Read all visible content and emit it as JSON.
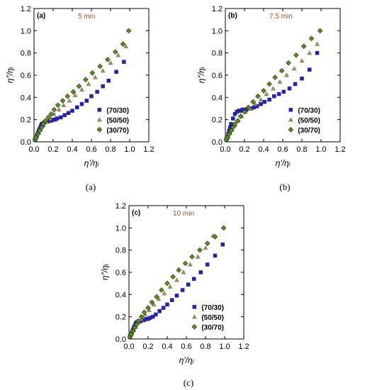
{
  "colors": {
    "s70": "#2222aa",
    "s50": "#a88a5a",
    "s30": "#5e8a2a",
    "time_label": "#a0522d"
  },
  "chart_data": [
    {
      "type": "scatter",
      "panel_label": "(a)",
      "caption": "(a)",
      "time_label": "5 min",
      "xlim": [
        0,
        1.2
      ],
      "ylim": [
        0,
        1.2
      ],
      "xticks": [
        "0.0",
        "0.2",
        "0.4",
        "0.6",
        "0.8",
        "1.0",
        "1.2"
      ],
      "yticks": [
        "0.0",
        "0.2",
        "0.4",
        "0.6",
        "0.8",
        "1.0",
        "1.2"
      ],
      "xlabel": "η′/ηᵢ",
      "ylabel": "η″/ηᵢ",
      "legend_position": "bottom-right",
      "series": [
        {
          "name": "(70/30)",
          "marker": "square",
          "x": [
            0.01,
            0.02,
            0.03,
            0.04,
            0.05,
            0.06,
            0.07,
            0.08,
            0.1,
            0.12,
            0.14,
            0.16,
            0.18,
            0.2,
            0.22,
            0.24,
            0.28,
            0.32,
            0.36,
            0.4,
            0.45,
            0.5,
            0.55,
            0.6,
            0.66,
            0.72,
            0.78,
            0.86,
            0.94
          ],
          "y": [
            0.02,
            0.04,
            0.06,
            0.08,
            0.1,
            0.12,
            0.14,
            0.16,
            0.17,
            0.18,
            0.18,
            0.19,
            0.19,
            0.2,
            0.2,
            0.21,
            0.22,
            0.24,
            0.26,
            0.28,
            0.31,
            0.34,
            0.37,
            0.41,
            0.45,
            0.5,
            0.55,
            0.63,
            0.72
          ]
        },
        {
          "name": "(50/50)",
          "marker": "triangle",
          "x": [
            0.01,
            0.03,
            0.05,
            0.07,
            0.1,
            0.13,
            0.17,
            0.21,
            0.26,
            0.31,
            0.37,
            0.43,
            0.5,
            0.57,
            0.64,
            0.72,
            0.8,
            0.88,
            0.96
          ],
          "y": [
            0.02,
            0.05,
            0.08,
            0.11,
            0.15,
            0.18,
            0.21,
            0.25,
            0.29,
            0.33,
            0.37,
            0.42,
            0.47,
            0.52,
            0.58,
            0.64,
            0.71,
            0.78,
            0.86
          ]
        },
        {
          "name": "(30/70)",
          "marker": "diamond",
          "x": [
            0.01,
            0.02,
            0.04,
            0.06,
            0.08,
            0.1,
            0.12,
            0.15,
            0.18,
            0.21,
            0.25,
            0.3,
            0.35,
            0.41,
            0.47,
            0.54,
            0.61,
            0.69,
            0.77,
            0.85,
            0.93,
            0.99
          ],
          "y": [
            0.02,
            0.04,
            0.07,
            0.1,
            0.13,
            0.16,
            0.19,
            0.22,
            0.25,
            0.29,
            0.33,
            0.37,
            0.41,
            0.45,
            0.5,
            0.56,
            0.62,
            0.68,
            0.74,
            0.81,
            0.88,
            1.0
          ]
        }
      ]
    },
    {
      "type": "scatter",
      "panel_label": "(b)",
      "caption": "(b)",
      "time_label": "7.5 min",
      "xlim": [
        0,
        1.2
      ],
      "ylim": [
        0,
        1.2
      ],
      "xticks": [
        "0.0",
        "0.2",
        "0.4",
        "0.6",
        "0.8",
        "1.0",
        "1.2"
      ],
      "yticks": [
        "0.0",
        "0.2",
        "0.4",
        "0.6",
        "0.8",
        "1.0",
        "1.2"
      ],
      "xlabel": "η′/ηᵢ",
      "ylabel": "η″/ηᵢ",
      "legend_position": "bottom-right",
      "series": [
        {
          "name": "(70/30)",
          "marker": "square",
          "x": [
            0.01,
            0.02,
            0.03,
            0.04,
            0.05,
            0.06,
            0.08,
            0.1,
            0.12,
            0.14,
            0.16,
            0.18,
            0.2,
            0.22,
            0.24,
            0.27,
            0.3,
            0.33,
            0.37,
            0.41,
            0.46,
            0.51,
            0.56,
            0.61,
            0.67,
            0.73,
            0.8,
            0.88,
            0.96
          ],
          "y": [
            0.02,
            0.04,
            0.07,
            0.1,
            0.13,
            0.16,
            0.21,
            0.25,
            0.27,
            0.28,
            0.28,
            0.29,
            0.29,
            0.29,
            0.3,
            0.3,
            0.31,
            0.32,
            0.34,
            0.36,
            0.38,
            0.41,
            0.43,
            0.45,
            0.48,
            0.52,
            0.57,
            0.65,
            0.8
          ]
        },
        {
          "name": "(50/50)",
          "marker": "triangle",
          "x": [
            0.01,
            0.03,
            0.05,
            0.07,
            0.1,
            0.13,
            0.17,
            0.21,
            0.26,
            0.31,
            0.37,
            0.43,
            0.5,
            0.57,
            0.64,
            0.72,
            0.8,
            0.88,
            0.96
          ],
          "y": [
            0.02,
            0.05,
            0.08,
            0.11,
            0.15,
            0.19,
            0.23,
            0.27,
            0.3,
            0.34,
            0.38,
            0.43,
            0.48,
            0.54,
            0.6,
            0.66,
            0.73,
            0.8,
            0.88
          ]
        },
        {
          "name": "(30/70)",
          "marker": "diamond",
          "x": [
            0.01,
            0.02,
            0.04,
            0.06,
            0.08,
            0.1,
            0.13,
            0.16,
            0.2,
            0.24,
            0.29,
            0.34,
            0.4,
            0.46,
            0.52,
            0.59,
            0.66,
            0.74,
            0.82,
            0.9,
            0.99
          ],
          "y": [
            0.02,
            0.04,
            0.07,
            0.1,
            0.13,
            0.16,
            0.19,
            0.23,
            0.27,
            0.31,
            0.36,
            0.41,
            0.46,
            0.52,
            0.58,
            0.64,
            0.71,
            0.78,
            0.86,
            0.93,
            1.0
          ]
        }
      ]
    },
    {
      "type": "scatter",
      "panel_label": "(c)",
      "caption": "(c)",
      "time_label": "10 min",
      "xlim": [
        0,
        1.2
      ],
      "ylim": [
        0,
        1.2
      ],
      "xticks": [
        "0.0",
        "0.2",
        "0.4",
        "0.6",
        "0.8",
        "1.0",
        "1.2"
      ],
      "yticks": [
        "0.0",
        "0.2",
        "0.4",
        "0.6",
        "0.8",
        "1.0",
        "1.2"
      ],
      "xlabel": "η′/ηᵢ",
      "ylabel": "η″/ηᵢ",
      "legend_position": "bottom-right",
      "series": [
        {
          "name": "(70/30)",
          "marker": "square",
          "x": [
            0.01,
            0.02,
            0.03,
            0.04,
            0.05,
            0.06,
            0.07,
            0.08,
            0.1,
            0.12,
            0.14,
            0.16,
            0.18,
            0.2,
            0.22,
            0.25,
            0.28,
            0.32,
            0.36,
            0.4,
            0.45,
            0.5,
            0.56,
            0.62,
            0.68,
            0.75,
            0.82,
            0.9,
            0.98
          ],
          "y": [
            0.02,
            0.04,
            0.06,
            0.08,
            0.1,
            0.12,
            0.14,
            0.15,
            0.16,
            0.16,
            0.17,
            0.17,
            0.18,
            0.18,
            0.19,
            0.2,
            0.22,
            0.25,
            0.28,
            0.31,
            0.35,
            0.39,
            0.44,
            0.49,
            0.54,
            0.6,
            0.67,
            0.75,
            0.85
          ]
        },
        {
          "name": "(50/50)",
          "marker": "triangle",
          "x": [
            0.01,
            0.03,
            0.05,
            0.07,
            0.1,
            0.13,
            0.17,
            0.21,
            0.26,
            0.31,
            0.37,
            0.43,
            0.5,
            0.57,
            0.64,
            0.72,
            0.8,
            0.88
          ],
          "y": [
            0.02,
            0.05,
            0.08,
            0.11,
            0.15,
            0.18,
            0.22,
            0.26,
            0.31,
            0.36,
            0.41,
            0.47,
            0.53,
            0.6,
            0.67,
            0.74,
            0.82,
            0.93
          ]
        },
        {
          "name": "(30/70)",
          "marker": "diamond",
          "x": [
            0.01,
            0.02,
            0.04,
            0.06,
            0.08,
            0.1,
            0.13,
            0.16,
            0.2,
            0.24,
            0.29,
            0.34,
            0.4,
            0.46,
            0.52,
            0.59,
            0.66,
            0.74,
            0.82,
            0.9,
            0.99
          ],
          "y": [
            0.02,
            0.04,
            0.07,
            0.1,
            0.13,
            0.16,
            0.2,
            0.24,
            0.28,
            0.33,
            0.38,
            0.44,
            0.5,
            0.56,
            0.62,
            0.68,
            0.74,
            0.8,
            0.86,
            0.92,
            1.0
          ]
        }
      ]
    }
  ]
}
